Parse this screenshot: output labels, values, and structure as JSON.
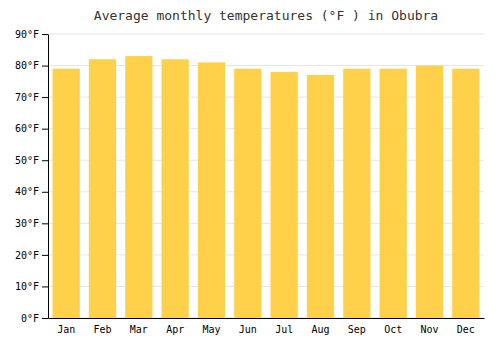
{
  "chart_data": {
    "type": "bar",
    "title": "Average monthly temperatures (°F ) in Obubra",
    "categories": [
      "Jan",
      "Feb",
      "Mar",
      "Apr",
      "May",
      "Jun",
      "Jul",
      "Aug",
      "Sep",
      "Oct",
      "Nov",
      "Dec"
    ],
    "values": [
      79,
      82,
      83,
      82,
      81,
      79,
      78,
      77,
      79,
      79,
      80,
      79
    ],
    "color": "#FFD04A",
    "ylim": [
      0,
      90
    ],
    "yticks": [
      {
        "value": 0,
        "label": "0°F"
      },
      {
        "value": 10,
        "label": "10°F"
      },
      {
        "value": 20,
        "label": "20°F"
      },
      {
        "value": 30,
        "label": "30°F"
      },
      {
        "value": 40,
        "label": "40°F"
      },
      {
        "value": 50,
        "label": "50°F"
      },
      {
        "value": 60,
        "label": "60°F"
      },
      {
        "value": 70,
        "label": "70°F"
      },
      {
        "value": 80,
        "label": "80°F"
      },
      {
        "value": 90,
        "label": "90°F"
      }
    ],
    "grid": true
  }
}
